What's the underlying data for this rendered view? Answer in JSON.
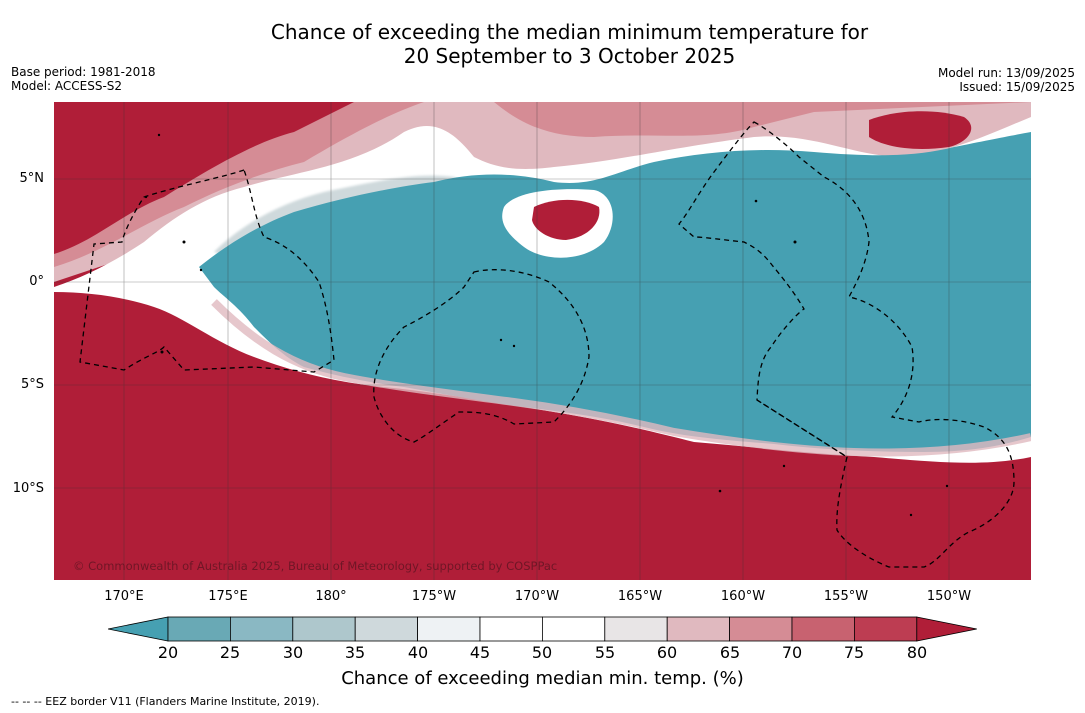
{
  "title": {
    "line1": "Chance of exceeding the median minimum temperature for",
    "line2": "20 September to 3 October 2025"
  },
  "meta_left": {
    "base_period": "Base period: 1981-2018",
    "model": "Model: ACCESS-S2"
  },
  "meta_right": {
    "model_run": "Model run: 13/09/2025",
    "issued": "Issued: 15/09/2025"
  },
  "map": {
    "lat_labels": [
      "5°N",
      "0°",
      "5°S",
      "10°S"
    ],
    "lon_labels": [
      "170°E",
      "175°E",
      "180°",
      "175°W",
      "170°W",
      "165°W",
      "160°W",
      "155°W",
      "150°W"
    ],
    "credit": "© Commonwealth of Australia 2025, Bureau of Meteorology, supported by COSPPac",
    "colors": {
      "high": "#b01e38",
      "low": "#46a0b2",
      "neutral": "#ffffff",
      "border": "#000000"
    }
  },
  "colorbar": {
    "ticks": [
      "20",
      "25",
      "30",
      "35",
      "40",
      "45",
      "50",
      "55",
      "60",
      "65",
      "70",
      "75",
      "80"
    ],
    "colors": [
      "#46a0b2",
      "#69a9b5",
      "#8ab8c3",
      "#aec7cc",
      "#cfd9dc",
      "#eef2f4",
      "#ffffff",
      "#ffffff",
      "#e8e5e6",
      "#e0b9bf",
      "#d58c95",
      "#c86270",
      "#bd3d52",
      "#b01e38"
    ],
    "label": "Chance of exceeding median min. temp. (%)"
  },
  "legend_note": "--  --  -- EEZ border V11 (Flanders Marine Institute, 2019)."
}
